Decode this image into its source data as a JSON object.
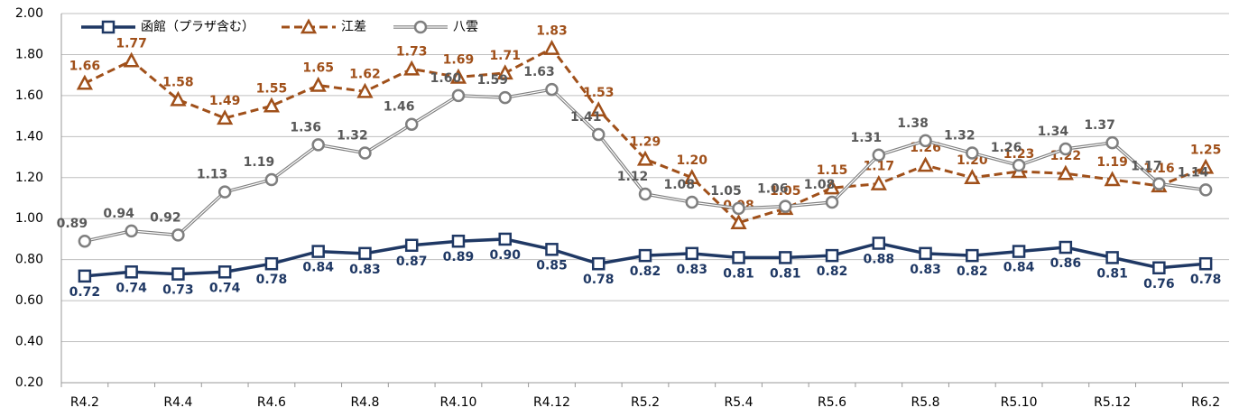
{
  "chart_data": {
    "type": "line",
    "categories": [
      "R4.2",
      null,
      "R4.4",
      null,
      "R4.6",
      null,
      "R4.8",
      null,
      "R4.10",
      null,
      "R4.12",
      null,
      "R5.2",
      null,
      "R5.4",
      null,
      "R5.6",
      null,
      "R5.8",
      null,
      "R5.10",
      null,
      "R5.12",
      null,
      "R6.2"
    ],
    "series": [
      {
        "name": "函館（プラザ含む）",
        "color": "#1f3864",
        "marker": "square",
        "values": [
          0.72,
          0.74,
          0.73,
          0.74,
          0.78,
          0.84,
          0.83,
          0.87,
          0.89,
          0.9,
          0.85,
          0.78,
          0.82,
          0.83,
          0.81,
          0.81,
          0.82,
          0.88,
          0.83,
          0.82,
          0.84,
          0.86,
          0.81,
          0.76,
          0.78
        ],
        "value_labels": [
          "0.72",
          "0.74",
          "0.73",
          "0.74",
          "0.78",
          "0.84",
          "0.83",
          "0.87",
          "0.89",
          "0.90",
          "0.85",
          "0.78",
          "0.82",
          "0.83",
          "0.81",
          "0.81",
          "0.82",
          "0.88",
          "0.83",
          "0.82",
          "0.84",
          "0.86",
          "0.81",
          "0.76",
          "0.78"
        ]
      },
      {
        "name": "江差",
        "color": "#a0501a",
        "marker": "triangle",
        "values": [
          1.66,
          1.77,
          1.58,
          1.49,
          1.55,
          1.65,
          1.62,
          1.73,
          1.69,
          1.71,
          1.83,
          1.53,
          1.29,
          1.2,
          0.98,
          1.05,
          1.15,
          1.17,
          1.26,
          1.2,
          1.23,
          1.22,
          1.19,
          1.16,
          1.25
        ],
        "value_labels": [
          "1.66",
          "1.77",
          "1.58",
          "1.49",
          "1.55",
          "1.65",
          "1.62",
          "1.73",
          "1.69",
          "1.71",
          "1.83",
          "1.53",
          "1.29",
          "1.20",
          "0.98",
          "1.05",
          "1.15",
          "1.17",
          "1.26",
          "1.20",
          "1.23",
          "1.22",
          "1.19",
          "1.16",
          "1.25"
        ]
      },
      {
        "name": "八雲",
        "color": "#7f7f7f",
        "marker": "circle",
        "values": [
          0.89,
          0.94,
          0.92,
          1.13,
          1.19,
          1.36,
          1.32,
          1.46,
          1.6,
          1.59,
          1.63,
          1.41,
          1.12,
          1.08,
          1.05,
          1.06,
          1.08,
          1.31,
          1.38,
          1.32,
          1.26,
          1.34,
          1.37,
          1.17,
          1.14
        ],
        "value_labels": [
          "0.89",
          "0.94",
          "0.92",
          "1.13",
          "1.19",
          "1.36",
          "1.32",
          "1.46",
          "1.60",
          "1.59",
          "1.63",
          "1.41",
          "1.12",
          "1.08",
          "1.05",
          "1.06",
          "1.08",
          "1.31",
          "1.38",
          "1.32",
          "1.26",
          "1.34",
          "1.37",
          "1.17",
          "1.14"
        ]
      }
    ],
    "ylim": [
      0.2,
      2.0
    ],
    "yticks": [
      {
        "value": 0.2,
        "label": "0.20"
      },
      {
        "value": 0.4,
        "label": "0.40"
      },
      {
        "value": 0.6,
        "label": "0.60"
      },
      {
        "value": 0.8,
        "label": "0.80"
      },
      {
        "value": 1.0,
        "label": "1.00"
      },
      {
        "value": 1.2,
        "label": "1.20"
      },
      {
        "value": 1.4,
        "label": "1.40"
      },
      {
        "value": 1.6,
        "label": "1.60"
      },
      {
        "value": 1.8,
        "label": "1.80"
      },
      {
        "value": 2.0,
        "label": "2.00"
      }
    ],
    "grid": true
  }
}
